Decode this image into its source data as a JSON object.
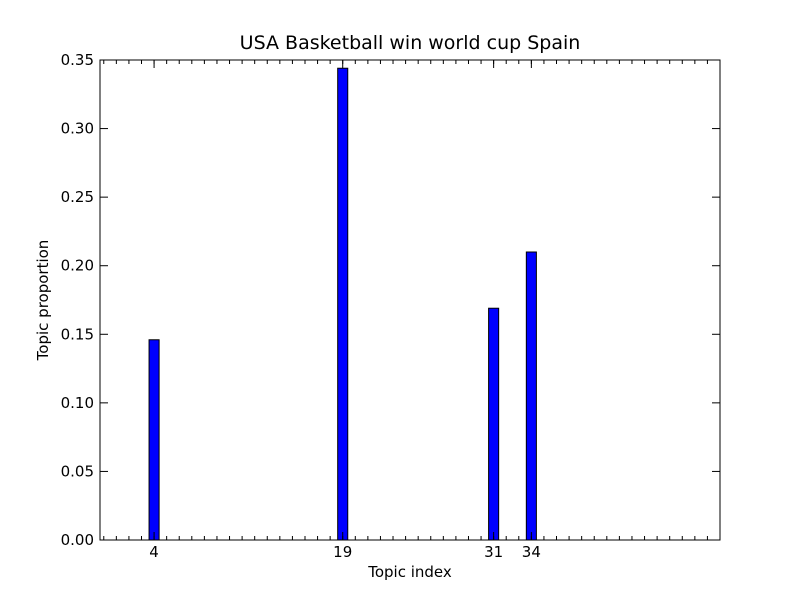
{
  "chart_data": {
    "type": "bar",
    "title": "USA Basketball win world cup Spain",
    "xlabel": "Topic index",
    "ylabel": "Topic proportion",
    "x": [
      4,
      19,
      31,
      34
    ],
    "values": [
      0.146,
      0.344,
      0.169,
      0.21
    ],
    "x_tick_labels": [
      "4",
      "19",
      "31",
      "34"
    ],
    "y_ticks": [
      0.0,
      0.05,
      0.1,
      0.15,
      0.2,
      0.25,
      0.3,
      0.35
    ],
    "y_tick_labels": [
      "0.00",
      "0.05",
      "0.10",
      "0.15",
      "0.20",
      "0.25",
      "0.30",
      "0.35"
    ],
    "xlim": [
      -0.3,
      49
    ],
    "ylim": [
      0,
      0.35
    ],
    "minor_x_tick_step": 1,
    "grid": false,
    "legend": "none",
    "bar_color": "#0000ff",
    "edge_color": "#000000"
  }
}
